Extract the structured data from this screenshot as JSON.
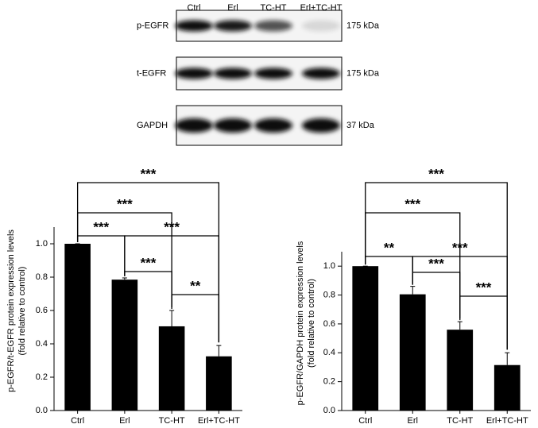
{
  "blot": {
    "lanes": [
      "Ctrl",
      "Erl",
      "TC-HT",
      "Erl+TC-HT"
    ],
    "rows": [
      {
        "label": "p-EGFR",
        "size": "175 kDa"
      },
      {
        "label": "t-EGFR",
        "size": "175 kDa"
      },
      {
        "label": "GAPDH",
        "size": "37 kDa"
      }
    ]
  },
  "chart_data": [
    {
      "type": "bar",
      "ylabel": [
        "p-EGFR/t-EGFR protein expression levels",
        "(fold relative to control)"
      ],
      "categories": [
        "Ctrl",
        "Erl",
        "TC-HT",
        "Erl+TC-HT"
      ],
      "values": [
        1.0,
        0.785,
        0.505,
        0.325
      ],
      "errors": [
        0,
        0.01,
        0.095,
        0.065
      ],
      "color": "#000000",
      "ylim": [
        0,
        1.1
      ],
      "yticks": [
        {
          "value": 0,
          "label": "0.0"
        },
        0.2,
        0.4,
        0.6,
        0.8,
        {
          "value": 1,
          "label": "1.0"
        }
      ],
      "comparisons": [
        {
          "from": 0,
          "to": 1,
          "label": "***"
        },
        {
          "from": 1,
          "to": 2,
          "label": "***"
        },
        {
          "from": 2,
          "to": 3,
          "label": "**"
        },
        {
          "from": 1,
          "to": 3,
          "label": "***"
        },
        {
          "from": 0,
          "to": 2,
          "label": "***"
        },
        {
          "from": 0,
          "to": 3,
          "label": "***"
        }
      ]
    },
    {
      "type": "bar",
      "ylabel": [
        "p-EGFR/GAPDH protein expression levels",
        "(fold relative to control)"
      ],
      "categories": [
        "Ctrl",
        "Erl",
        "TC-HT",
        "Erl+TC-HT"
      ],
      "values": [
        1.0,
        0.805,
        0.56,
        0.315
      ],
      "errors": [
        0,
        0.055,
        0.055,
        0.085
      ],
      "color": "#000000",
      "ylim": [
        0,
        1.1
      ],
      "yticks": [
        {
          "value": 0,
          "label": "0.0"
        },
        0.2,
        0.4,
        0.6,
        0.8,
        {
          "value": 1,
          "label": "1.0"
        }
      ],
      "comparisons": [
        {
          "from": 0,
          "to": 1,
          "label": "**"
        },
        {
          "from": 1,
          "to": 2,
          "label": "***"
        },
        {
          "from": 2,
          "to": 3,
          "label": "***"
        },
        {
          "from": 1,
          "to": 3,
          "label": "***"
        },
        {
          "from": 0,
          "to": 2,
          "label": "***"
        },
        {
          "from": 0,
          "to": 3,
          "label": "***"
        }
      ]
    }
  ]
}
